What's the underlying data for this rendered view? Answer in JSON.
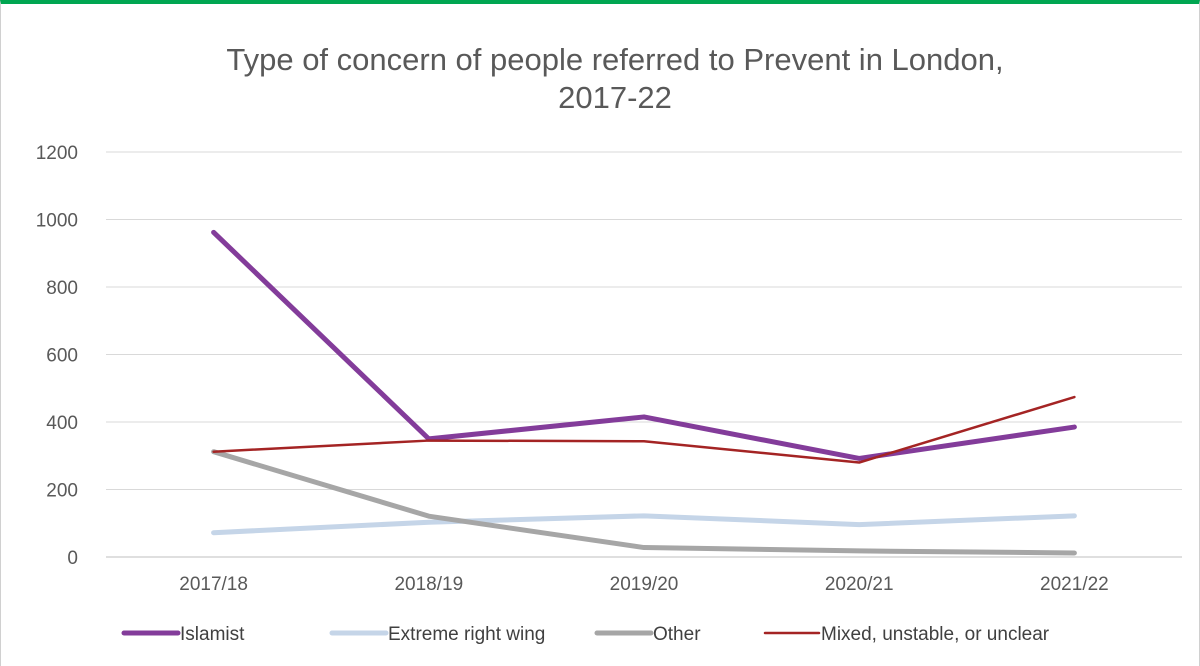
{
  "chart_data": {
    "type": "line",
    "title_lines": [
      "Type of concern of people referred to Prevent in London,",
      "2017-22"
    ],
    "categories": [
      "2017/18",
      "2018/19",
      "2019/20",
      "2020/21",
      "2021/22"
    ],
    "ylim": [
      0,
      1200
    ],
    "yticks": [
      "0",
      "200",
      "400",
      "600",
      "800",
      "1000",
      "1200"
    ],
    "grid": true,
    "legend_position": "bottom",
    "series": [
      {
        "name": "Islamist",
        "values": [
          962,
          350,
          415,
          292,
          385
        ],
        "color": "#833c9a"
      },
      {
        "name": "Extreme right wing",
        "values": [
          72,
          103,
          122,
          96,
          122
        ],
        "color": "#c5d5e8"
      },
      {
        "name": "Other",
        "values": [
          312,
          121,
          28,
          18,
          12
        ],
        "color": "#a6a6a6"
      },
      {
        "name": "Mixed, unstable, or unclear",
        "values": [
          312,
          345,
          343,
          280,
          474
        ],
        "color": "#a42424"
      }
    ]
  }
}
